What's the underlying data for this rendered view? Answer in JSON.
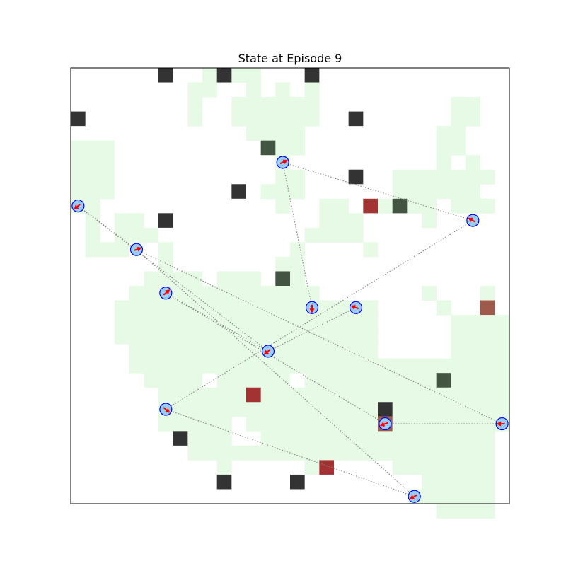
{
  "chart_data": {
    "type": "scatter",
    "title": "State at Episode 9",
    "xlabel": "",
    "ylabel": "",
    "xlim": [
      0,
      30
    ],
    "ylim": [
      30,
      0
    ],
    "ticks": "hidden",
    "grid": false,
    "colors": {
      "visited": "#e6fae6",
      "obstacle": "#333333",
      "dark_green_cell": "#435443",
      "red_cell": "#a33333",
      "brown_cell": "#9e5a4a",
      "agent_fill": "#99ccf2",
      "agent_edge": "#0000ff",
      "arrow": "#ff0000",
      "link": "#808080"
    },
    "visited_runs": [
      [
        0,
        9,
        12
      ],
      [
        0,
        16,
        16
      ],
      [
        1,
        8,
        9
      ],
      [
        1,
        12,
        12
      ],
      [
        1,
        14,
        14
      ],
      [
        1,
        16,
        16
      ],
      [
        2,
        8,
        8
      ],
      [
        2,
        11,
        16
      ],
      [
        2,
        26,
        27
      ],
      [
        3,
        8,
        8
      ],
      [
        3,
        11,
        16
      ],
      [
        3,
        26,
        27
      ],
      [
        4,
        12,
        15
      ],
      [
        4,
        25,
        26
      ],
      [
        5,
        0,
        2
      ],
      [
        5,
        13,
        15
      ],
      [
        5,
        25,
        26
      ],
      [
        6,
        0,
        2
      ],
      [
        6,
        14,
        14
      ],
      [
        6,
        25,
        25
      ],
      [
        6,
        27,
        27
      ],
      [
        7,
        0,
        2
      ],
      [
        7,
        14,
        15
      ],
      [
        7,
        22,
        28
      ],
      [
        8,
        0,
        2
      ],
      [
        8,
        13,
        15
      ],
      [
        8,
        22,
        27
      ],
      [
        9,
        0,
        1
      ],
      [
        9,
        14,
        14
      ],
      [
        9,
        17,
        18
      ],
      [
        9,
        20,
        21
      ],
      [
        9,
        22,
        24
      ],
      [
        9,
        26,
        28
      ],
      [
        10,
        1,
        1
      ],
      [
        10,
        3,
        4
      ],
      [
        10,
        17,
        19
      ],
      [
        10,
        24,
        24
      ],
      [
        11,
        1,
        1
      ],
      [
        11,
        3,
        5
      ],
      [
        11,
        16,
        19
      ],
      [
        12,
        1,
        3
      ],
      [
        12,
        6,
        6
      ],
      [
        12,
        15,
        15
      ],
      [
        12,
        20,
        20
      ],
      [
        13,
        6,
        6
      ],
      [
        13,
        14,
        15
      ],
      [
        14,
        5,
        8
      ],
      [
        14,
        10,
        12
      ],
      [
        14,
        14,
        15
      ],
      [
        15,
        4,
        9
      ],
      [
        15,
        10,
        16
      ],
      [
        15,
        24,
        24
      ],
      [
        15,
        28,
        28
      ],
      [
        16,
        3,
        10
      ],
      [
        16,
        11,
        19
      ],
      [
        16,
        19,
        20
      ],
      [
        16,
        25,
        25
      ],
      [
        17,
        3,
        9
      ],
      [
        17,
        10,
        14
      ],
      [
        17,
        15,
        18
      ],
      [
        17,
        19,
        20
      ],
      [
        17,
        26,
        29
      ],
      [
        18,
        3,
        10
      ],
      [
        18,
        11,
        13
      ],
      [
        18,
        14,
        18
      ],
      [
        18,
        17,
        20
      ],
      [
        18,
        26,
        29
      ],
      [
        19,
        4,
        9
      ],
      [
        19,
        10,
        17
      ],
      [
        19,
        17,
        20
      ],
      [
        19,
        26,
        29
      ],
      [
        20,
        4,
        10
      ],
      [
        20,
        11,
        12
      ],
      [
        20,
        13,
        21
      ],
      [
        20,
        21,
        22
      ],
      [
        20,
        23,
        29
      ],
      [
        21,
        5,
        8
      ],
      [
        21,
        10,
        14
      ],
      [
        21,
        16,
        20
      ],
      [
        21,
        20,
        29
      ],
      [
        22,
        6,
        10
      ],
      [
        22,
        10,
        12
      ],
      [
        22,
        13,
        20
      ],
      [
        22,
        20,
        25
      ],
      [
        22,
        26,
        29
      ],
      [
        23,
        6,
        10
      ],
      [
        23,
        11,
        14
      ],
      [
        23,
        14,
        23
      ],
      [
        23,
        23,
        29
      ],
      [
        24,
        6,
        10
      ],
      [
        24,
        12,
        21
      ],
      [
        24,
        22,
        23
      ],
      [
        24,
        24,
        29
      ],
      [
        25,
        7,
        10
      ],
      [
        25,
        13,
        16
      ],
      [
        25,
        16,
        20
      ],
      [
        25,
        21,
        23
      ],
      [
        25,
        24,
        28
      ],
      [
        26,
        8,
        10
      ],
      [
        26,
        11,
        21
      ],
      [
        26,
        21,
        28
      ],
      [
        27,
        10,
        10
      ],
      [
        27,
        16,
        16
      ],
      [
        27,
        22,
        25
      ],
      [
        27,
        26,
        28
      ],
      [
        28,
        24,
        28
      ],
      [
        29,
        23,
        28
      ],
      [
        30,
        25,
        28
      ]
    ],
    "obstacle_cells": [
      [
        6,
        0
      ],
      [
        10,
        0
      ],
      [
        16,
        0
      ],
      [
        0,
        3
      ],
      [
        19,
        3
      ],
      [
        19,
        7
      ],
      [
        11,
        8
      ],
      [
        6,
        10
      ],
      [
        15,
        28
      ],
      [
        21,
        23
      ],
      [
        7,
        25
      ],
      [
        10,
        28
      ]
    ],
    "dark_green_cells": [
      [
        13,
        5
      ],
      [
        22,
        9
      ],
      [
        14,
        14
      ],
      [
        25,
        21
      ]
    ],
    "red_cells": [
      [
        20,
        9
      ],
      [
        12,
        22
      ],
      [
        17,
        27
      ]
    ],
    "brown_cells": [
      [
        28,
        16
      ],
      [
        21,
        24
      ]
    ],
    "agents": [
      {
        "x": 14.5,
        "y": 6.5,
        "dir": 25
      },
      {
        "x": 0.5,
        "y": 9.5,
        "dir": 220
      },
      {
        "x": 27.5,
        "y": 10.5,
        "dir": 150
      },
      {
        "x": 4.5,
        "y": 12.5,
        "dir": 20
      },
      {
        "x": 6.5,
        "y": 15.5,
        "dir": 40
      },
      {
        "x": 16.5,
        "y": 16.5,
        "dir": 270
      },
      {
        "x": 19.5,
        "y": 16.5,
        "dir": 160
      },
      {
        "x": 13.5,
        "y": 19.5,
        "dir": 220
      },
      {
        "x": 6.5,
        "y": 23.5,
        "dir": 320
      },
      {
        "x": 21.5,
        "y": 24.5,
        "dir": 200
      },
      {
        "x": 29.5,
        "y": 24.5,
        "dir": 180
      },
      {
        "x": 23.5,
        "y": 29.5,
        "dir": 210
      }
    ],
    "links": [
      [
        0,
        2
      ],
      [
        0,
        5
      ],
      [
        1,
        3
      ],
      [
        1,
        7
      ],
      [
        2,
        8
      ],
      [
        3,
        10
      ],
      [
        3,
        11
      ],
      [
        4,
        7
      ],
      [
        4,
        9
      ],
      [
        6,
        7
      ],
      [
        8,
        11
      ],
      [
        9,
        10
      ]
    ]
  }
}
